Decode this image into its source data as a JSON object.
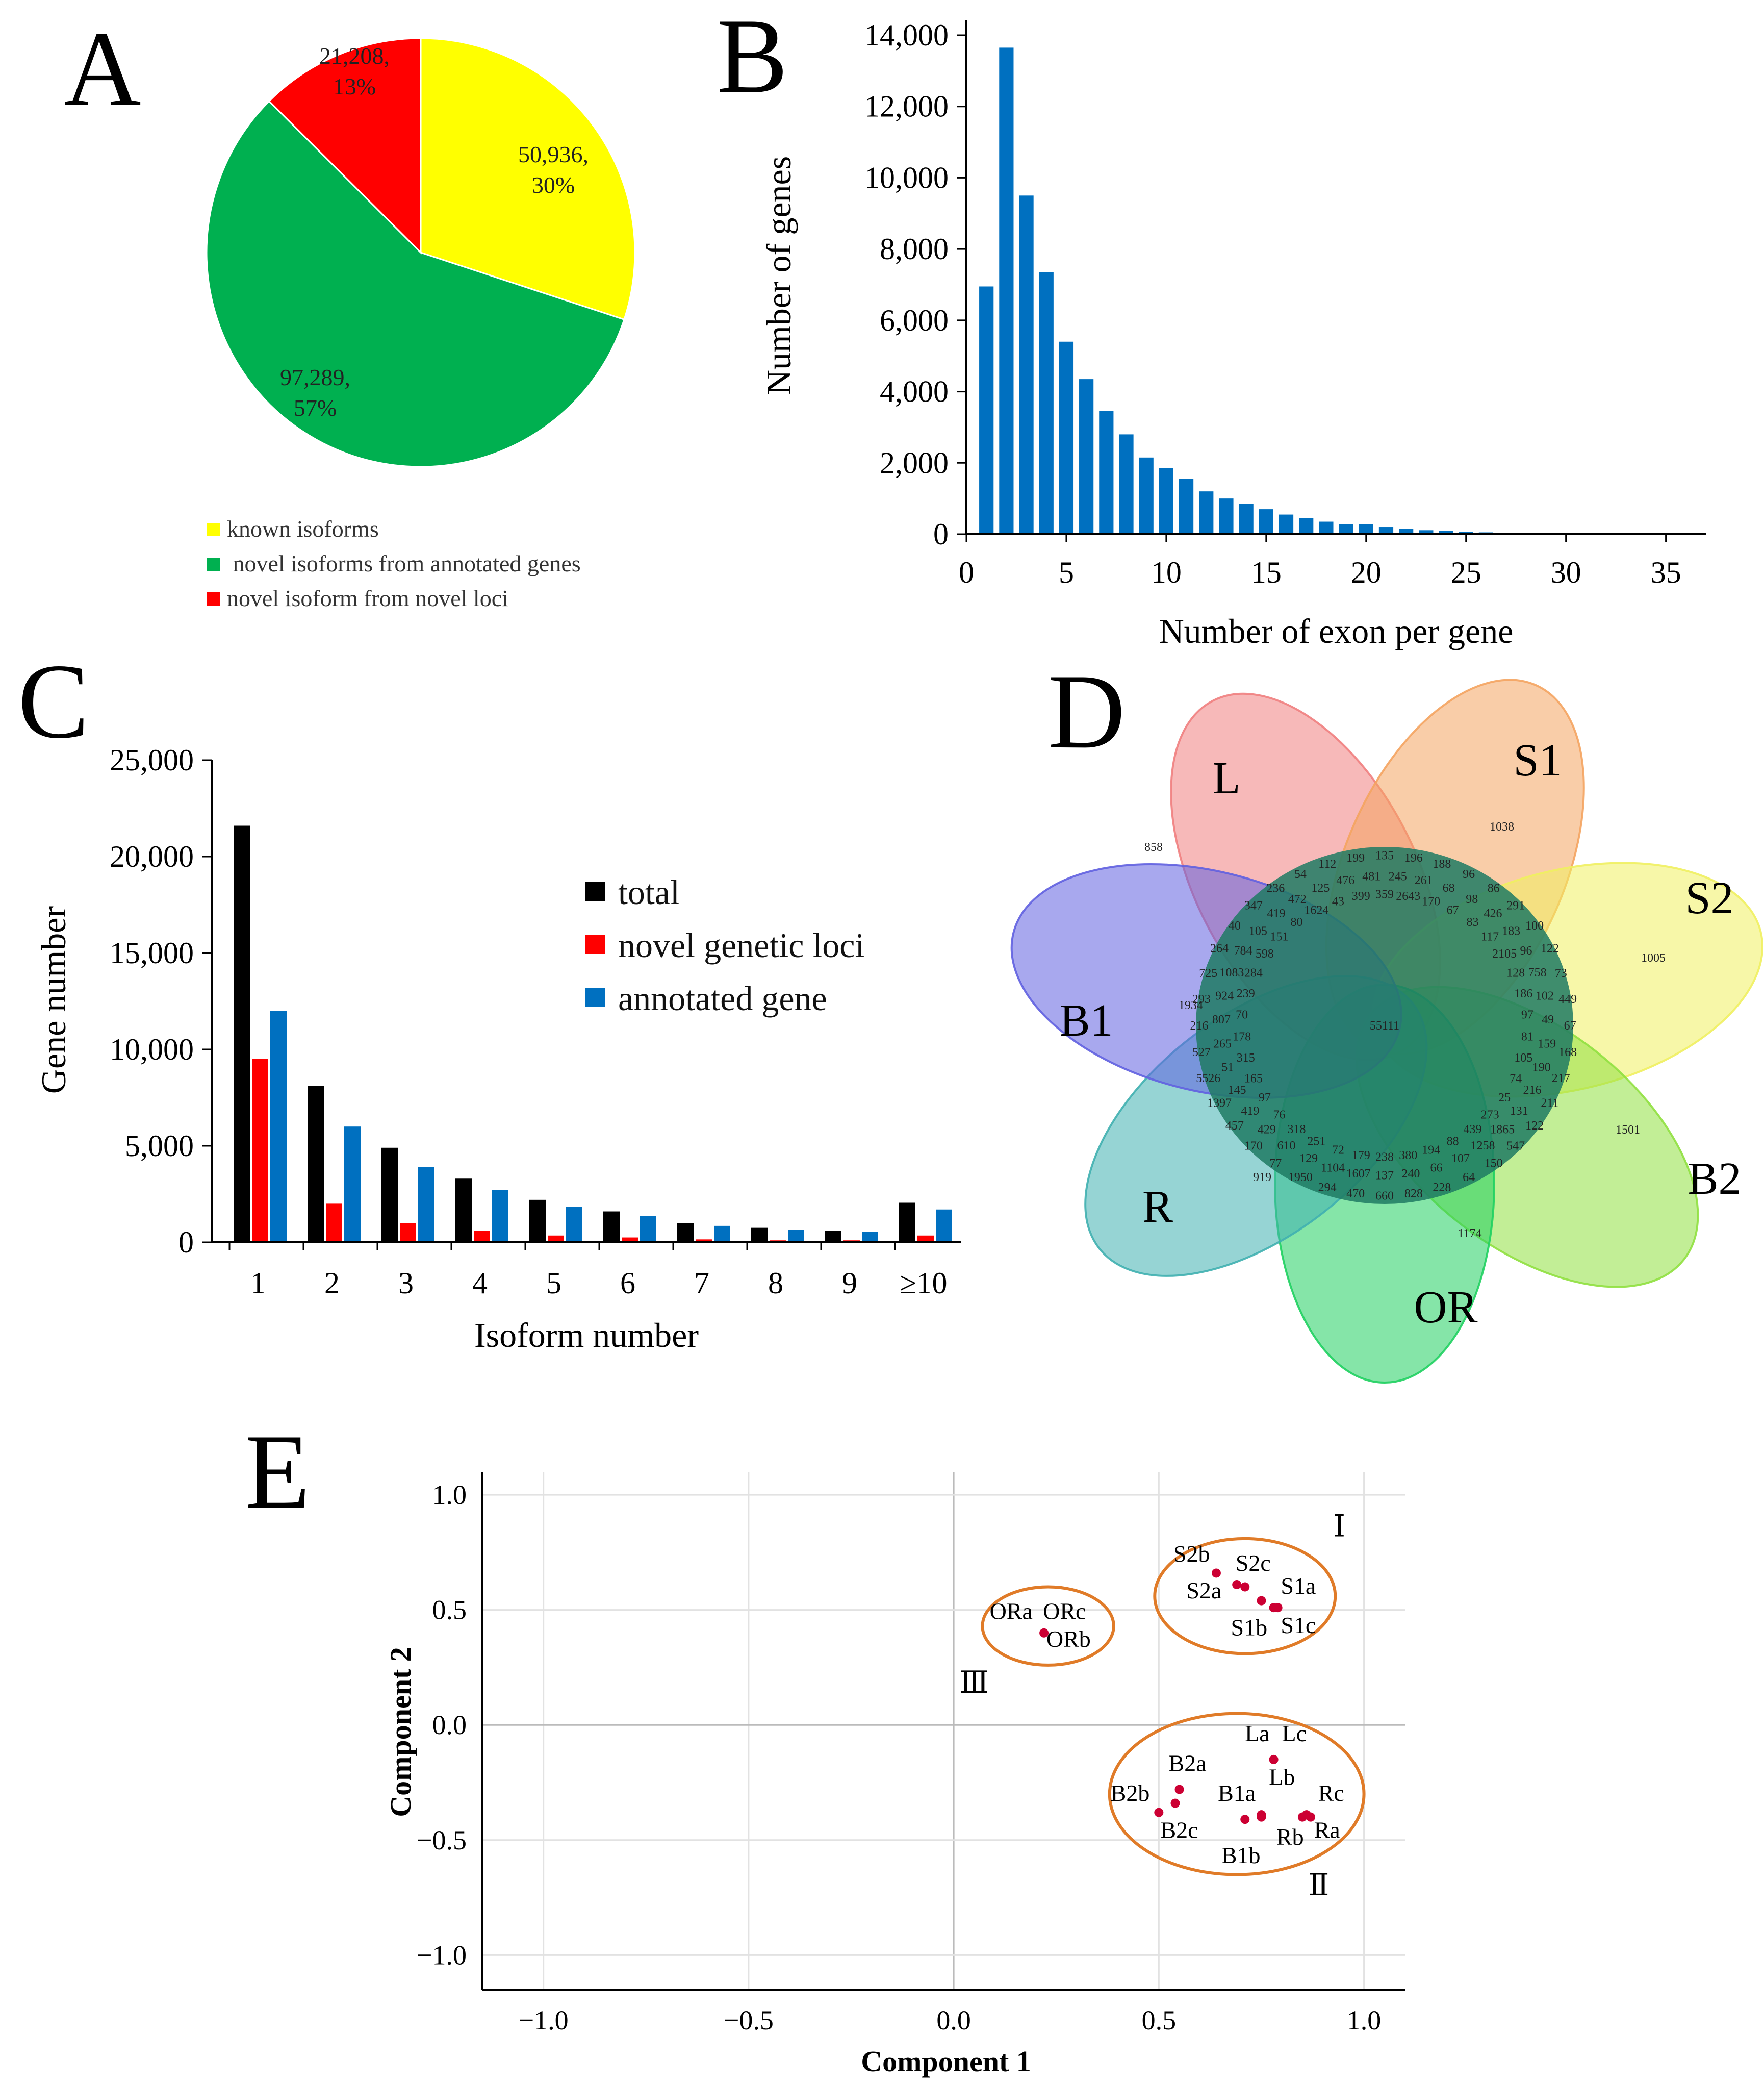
{
  "panels": {
    "A": "A",
    "B": "B",
    "C": "C",
    "D": "D",
    "E": "E"
  },
  "chart_data": [
    {
      "id": "A",
      "type": "pie",
      "slices": [
        {
          "name": "known isoforms",
          "value": 50936,
          "label_value": "50,936,",
          "label_pct": "30%",
          "color": "#ffff00"
        },
        {
          "name": "novel isoforms from annotated genes",
          "value": 97289,
          "label_value": "97,289,",
          "label_pct": "57%",
          "color": "#00b050"
        },
        {
          "name": "novel isoform from novel loci",
          "value": 21208,
          "label_value": "21,208,",
          "label_pct": "13%",
          "color": "#ff0000"
        }
      ],
      "legend": [
        "known isoforms",
        " novel isoforms from annotated genes",
        "novel isoform from novel loci"
      ]
    },
    {
      "id": "B",
      "type": "bar",
      "title": "",
      "xlabel": "Number of exon per gene",
      "ylabel": "Number of genes",
      "color": "#0070c0",
      "x": [
        1,
        2,
        3,
        4,
        5,
        6,
        7,
        8,
        9,
        10,
        11,
        12,
        13,
        14,
        15,
        16,
        17,
        18,
        19,
        20,
        21,
        22,
        23,
        24,
        25,
        26,
        27,
        28,
        29,
        30,
        31,
        32,
        33,
        34,
        35,
        36
      ],
      "values": [
        6950,
        13650,
        9500,
        7350,
        5400,
        4350,
        3450,
        2800,
        2150,
        1850,
        1550,
        1200,
        1000,
        850,
        700,
        550,
        450,
        350,
        280,
        280,
        200,
        150,
        110,
        90,
        60,
        50,
        30,
        25,
        20,
        15,
        10,
        8,
        6,
        5,
        4,
        3
      ],
      "xlim": [
        0,
        37
      ],
      "ylim": [
        0,
        14200
      ],
      "xticks": [
        0,
        5,
        10,
        15,
        20,
        25,
        30,
        35
      ],
      "xtick_labels": [
        "0",
        "5",
        "10",
        "15",
        "20",
        "25",
        "30",
        "35"
      ],
      "yticks": [
        0,
        2000,
        4000,
        6000,
        8000,
        10000,
        12000,
        14000
      ],
      "ytick_labels": [
        "0",
        "2,000",
        "4,000",
        "6,000",
        "8,000",
        "10,000",
        "12,000",
        "14,000"
      ]
    },
    {
      "id": "C",
      "type": "bar",
      "xlabel": "Isoform number",
      "ylabel": "Gene number",
      "categories": [
        "1",
        "2",
        "3",
        "4",
        "5",
        "6",
        "7",
        "8",
        "9",
        "≥10"
      ],
      "series": [
        {
          "name": "total",
          "color": "#000000",
          "values": [
            21600,
            8100,
            4900,
            3300,
            2200,
            1600,
            1000,
            750,
            600,
            2050
          ]
        },
        {
          "name": "novel genetic loci",
          "color": "#ff0000",
          "values": [
            9500,
            2000,
            1000,
            600,
            350,
            250,
            150,
            100,
            100,
            350
          ]
        },
        {
          "name": "annotated gene",
          "color": "#0070c0",
          "values": [
            12000,
            6000,
            3900,
            2700,
            1850,
            1350,
            850,
            650,
            550,
            1700
          ]
        }
      ],
      "ylim": [
        0,
        25000
      ],
      "yticks": [
        0,
        5000,
        10000,
        15000,
        20000,
        25000
      ],
      "ytick_labels": [
        "0",
        "5,000",
        "10,000",
        "15,000",
        "20,000",
        "25,000"
      ]
    },
    {
      "id": "D",
      "type": "venn",
      "sets": [
        {
          "name": "L",
          "color": "#f08080"
        },
        {
          "name": "S1",
          "color": "#f4a460"
        },
        {
          "name": "S2",
          "color": "#f0f060"
        },
        {
          "name": "B2",
          "color": "#90e040"
        },
        {
          "name": "OR",
          "color": "#20d060"
        },
        {
          "name": "R",
          "color": "#40b0b0"
        },
        {
          "name": "B1",
          "color": "#6060e0"
        }
      ],
      "center_value": "55111",
      "outer_values": [
        "858",
        "1038",
        "1005",
        "1501",
        "1174",
        "919",
        "1934"
      ],
      "inner_values": [
        "135",
        "196",
        "188",
        "96",
        "86",
        "291",
        "100",
        "122",
        "73",
        "449",
        "67",
        "168",
        "217",
        "211",
        "122",
        "547",
        "150",
        "64",
        "228",
        "828",
        "660",
        "470",
        "294",
        "1950",
        "77",
        "170",
        "457",
        "1397",
        "5526",
        "527",
        "216",
        "293",
        "725",
        "264",
        "40",
        "347",
        "236",
        "54",
        "112",
        "199",
        "245",
        "261",
        "68",
        "98",
        "426",
        "183",
        "96",
        "758",
        "102",
        "49",
        "159",
        "190",
        "216",
        "131",
        "1865",
        "1258",
        "107",
        "66",
        "240",
        "137",
        "1607",
        "1104",
        "129",
        "610",
        "429",
        "419",
        "145",
        "51",
        "265",
        "807",
        "924",
        "1083",
        "784",
        "105",
        "419",
        "472",
        "125",
        "476",
        "481",
        "2643",
        "170",
        "67",
        "83",
        "117",
        "2105",
        "128",
        "186",
        "97",
        "81",
        "105",
        "74",
        "25",
        "273",
        "439",
        "88",
        "194",
        "380",
        "238",
        "179",
        "72",
        "251",
        "318",
        "76",
        "97",
        "165",
        "315",
        "178",
        "70",
        "239",
        "284",
        "598",
        "151",
        "80",
        "1624",
        "43",
        "399",
        "359"
      ]
    },
    {
      "id": "E",
      "type": "scatter",
      "xlabel": "Component 1",
      "ylabel": "Component 2",
      "xlim": [
        -1.15,
        1.1
      ],
      "ylim": [
        -1.15,
        1.1
      ],
      "xticks": [
        -1.0,
        -0.5,
        0.0,
        0.5,
        1.0
      ],
      "xtick_labels": [
        "−1.0",
        "−0.5",
        "0.0",
        "0.5",
        "1.0"
      ],
      "yticks": [
        1.0,
        0.5,
        0.0,
        -0.5,
        -1.0
      ],
      "ytick_labels": [
        "1.0",
        "0.5",
        "0.0",
        "−0.5",
        "−1.0"
      ],
      "point_color": "#cc0033",
      "ellipse_color": "#e07b28",
      "points": [
        {
          "x": 0.22,
          "y": 0.4
        },
        {
          "x": 0.64,
          "y": 0.66
        },
        {
          "x": 0.69,
          "y": 0.61
        },
        {
          "x": 0.71,
          "y": 0.6
        },
        {
          "x": 0.75,
          "y": 0.54
        },
        {
          "x": 0.78,
          "y": 0.51
        },
        {
          "x": 0.79,
          "y": 0.51
        },
        {
          "x": 0.78,
          "y": -0.15
        },
        {
          "x": 0.55,
          "y": -0.28
        },
        {
          "x": 0.5,
          "y": -0.38
        },
        {
          "x": 0.54,
          "y": -0.34
        },
        {
          "x": 0.71,
          "y": -0.41
        },
        {
          "x": 0.75,
          "y": -0.4
        },
        {
          "x": 0.75,
          "y": -0.39
        },
        {
          "x": 0.85,
          "y": -0.4
        },
        {
          "x": 0.86,
          "y": -0.39
        },
        {
          "x": 0.87,
          "y": -0.4
        }
      ],
      "point_labels": [
        {
          "text": "ORa",
          "x": 0.14,
          "y": 0.46
        },
        {
          "text": "ORc",
          "x": 0.27,
          "y": 0.46
        },
        {
          "text": "ORb",
          "x": 0.28,
          "y": 0.34
        },
        {
          "text": "S2b",
          "x": 0.58,
          "y": 0.71
        },
        {
          "text": "S2c",
          "x": 0.73,
          "y": 0.67
        },
        {
          "text": "S2a",
          "x": 0.61,
          "y": 0.55
        },
        {
          "text": "S1a",
          "x": 0.84,
          "y": 0.57
        },
        {
          "text": "S1b",
          "x": 0.72,
          "y": 0.39
        },
        {
          "text": "S1c",
          "x": 0.84,
          "y": 0.4
        },
        {
          "text": "La",
          "x": 0.74,
          "y": -0.07
        },
        {
          "text": "Lc",
          "x": 0.83,
          "y": -0.07
        },
        {
          "text": "Lb",
          "x": 0.8,
          "y": -0.26
        },
        {
          "text": "B2a",
          "x": 0.57,
          "y": -0.2
        },
        {
          "text": "B2b",
          "x": 0.43,
          "y": -0.33
        },
        {
          "text": "B2c",
          "x": 0.55,
          "y": -0.49
        },
        {
          "text": "B1a",
          "x": 0.69,
          "y": -0.33
        },
        {
          "text": "B1b",
          "x": 0.7,
          "y": -0.6
        },
        {
          "text": "Rc",
          "x": 0.92,
          "y": -0.33
        },
        {
          "text": "Rb",
          "x": 0.82,
          "y": -0.52
        },
        {
          "text": "Ra",
          "x": 0.91,
          "y": -0.49
        }
      ],
      "clusters": [
        {
          "name": "Ⅰ",
          "cx": 0.71,
          "cy": 0.56,
          "rx": 0.22,
          "ry": 0.25,
          "label_x": 0.94,
          "label_y": 0.82
        },
        {
          "name": "Ⅱ",
          "cx": 0.69,
          "cy": -0.3,
          "rx": 0.31,
          "ry": 0.35,
          "label_x": 0.89,
          "label_y": -0.74
        },
        {
          "name": "Ⅲ",
          "cx": 0.23,
          "cy": 0.43,
          "rx": 0.16,
          "ry": 0.17,
          "label_x": 0.05,
          "label_y": 0.14
        }
      ]
    }
  ]
}
